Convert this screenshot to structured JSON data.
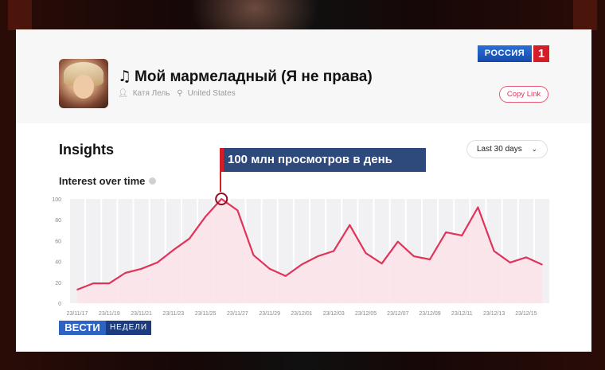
{
  "song": {
    "title": "Мой мармеладный (Я не права)",
    "artist": "Катя Лель",
    "region": "United States",
    "copy_label": "Copy Link",
    "cover_icon": "album-cover"
  },
  "insights": {
    "heading": "Insights",
    "range_value": "Last 30 days",
    "chart_heading": "Interest over time"
  },
  "overlay": {
    "channel_logo": "РОССИЯ",
    "channel_number": "1",
    "callout": "100 млн просмотров в день",
    "show_logo_main": "ВЕСТИ",
    "show_logo_sub": "НЕДЕЛИ"
  },
  "colors": {
    "accent": "#e0335a",
    "area_fill": "#fbe3ea",
    "bar_bg": "#f1f1f3",
    "callout_bg": "#2e4a7d",
    "channel_red": "#d51d28"
  },
  "chart_data": {
    "type": "area",
    "ylim": [
      0,
      100
    ],
    "yticks": [
      0,
      20,
      40,
      60,
      80,
      100
    ],
    "x_tick_labels": [
      "23/11/17",
      "23/11/19",
      "23/11/21",
      "23/11/23",
      "23/11/25",
      "23/11/27",
      "23/11/29",
      "23/12/01",
      "23/12/03",
      "23/12/05",
      "23/12/07",
      "23/12/09",
      "23/12/11",
      "23/12/13",
      "23/12/15"
    ],
    "x": [
      "23/11/17",
      "23/11/18",
      "23/11/19",
      "23/11/20",
      "23/11/21",
      "23/11/22",
      "23/11/23",
      "23/11/24",
      "23/11/25",
      "23/11/26",
      "23/11/27",
      "23/11/28",
      "23/11/29",
      "23/11/30",
      "23/12/01",
      "23/12/02",
      "23/12/03",
      "23/12/04",
      "23/12/05",
      "23/12/06",
      "23/12/07",
      "23/12/08",
      "23/12/09",
      "23/12/10",
      "23/12/11",
      "23/12/12",
      "23/12/13",
      "23/12/14",
      "23/12/15",
      "23/12/16"
    ],
    "values": [
      13,
      19,
      19,
      29,
      33,
      39,
      51,
      62,
      83,
      100,
      89,
      46,
      33,
      26,
      37,
      45,
      50,
      75,
      48,
      38,
      59,
      45,
      42,
      68,
      65,
      92,
      50,
      39,
      44,
      37
    ],
    "highlight_index": 9
  }
}
